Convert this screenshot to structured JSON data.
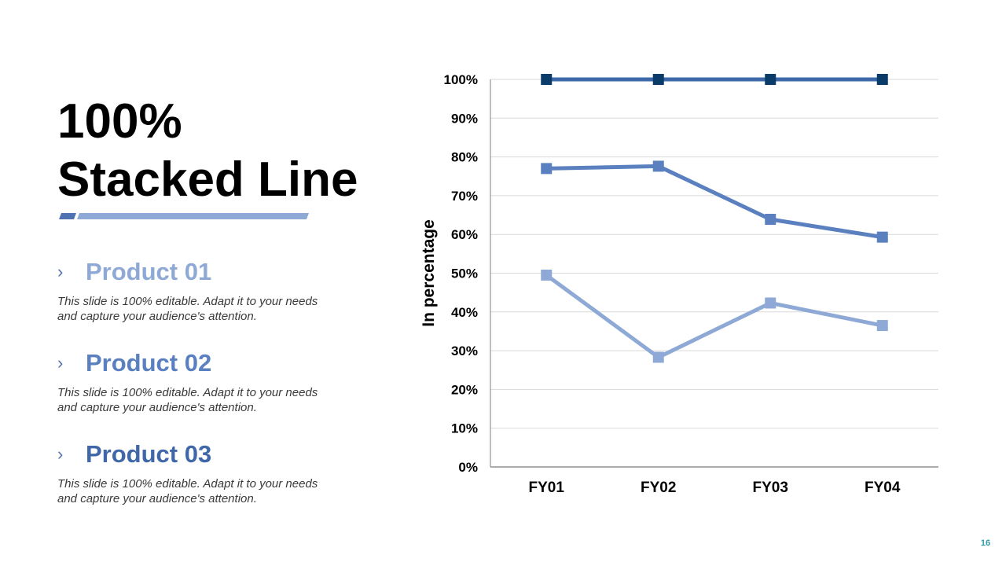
{
  "slide": {
    "title_line1": "100%",
    "title_line2": "Stacked Line",
    "page_number": "16",
    "accent_dark": "#4f73b2",
    "accent_light": "#8ea9d6"
  },
  "products": [
    {
      "name": "Product 01",
      "color": "#8ea9d6",
      "desc_line1": "This slide is 100% editable. Adapt it to your needs",
      "desc_line2": "and capture your audience's attention."
    },
    {
      "name": "Product 02",
      "color": "#5a80c0",
      "desc_line1": "This slide is 100% editable. Adapt it to your needs",
      "desc_line2": "and capture your audience's attention."
    },
    {
      "name": "Product 03",
      "color": "#4068a8",
      "desc_line1": "This slide is 100% editable. Adapt it to your needs",
      "desc_line2": "and capture your audience's attention."
    }
  ],
  "chart_data": {
    "type": "line",
    "title": "",
    "xlabel": "",
    "ylabel": "In percentage",
    "categories": [
      "FY01",
      "FY02",
      "FY03",
      "FY04"
    ],
    "ylim": [
      0,
      100
    ],
    "yticks": [
      0,
      10,
      20,
      30,
      40,
      50,
      60,
      70,
      80,
      90,
      100
    ],
    "ytick_labels": [
      "0%",
      "10%",
      "20%",
      "30%",
      "40%",
      "50%",
      "60%",
      "70%",
      "80%",
      "90%",
      "100%"
    ],
    "grid": true,
    "series": [
      {
        "color": "#8ea9d6",
        "values": [
          49.5,
          28.3,
          42.3,
          36.5
        ]
      },
      {
        "color": "#5b80c0",
        "values": [
          77.0,
          77.6,
          63.9,
          59.3
        ]
      },
      {
        "color": "#0b3b68",
        "line_color": "#3d69a8",
        "values": [
          100,
          100,
          100,
          100
        ]
      }
    ]
  }
}
